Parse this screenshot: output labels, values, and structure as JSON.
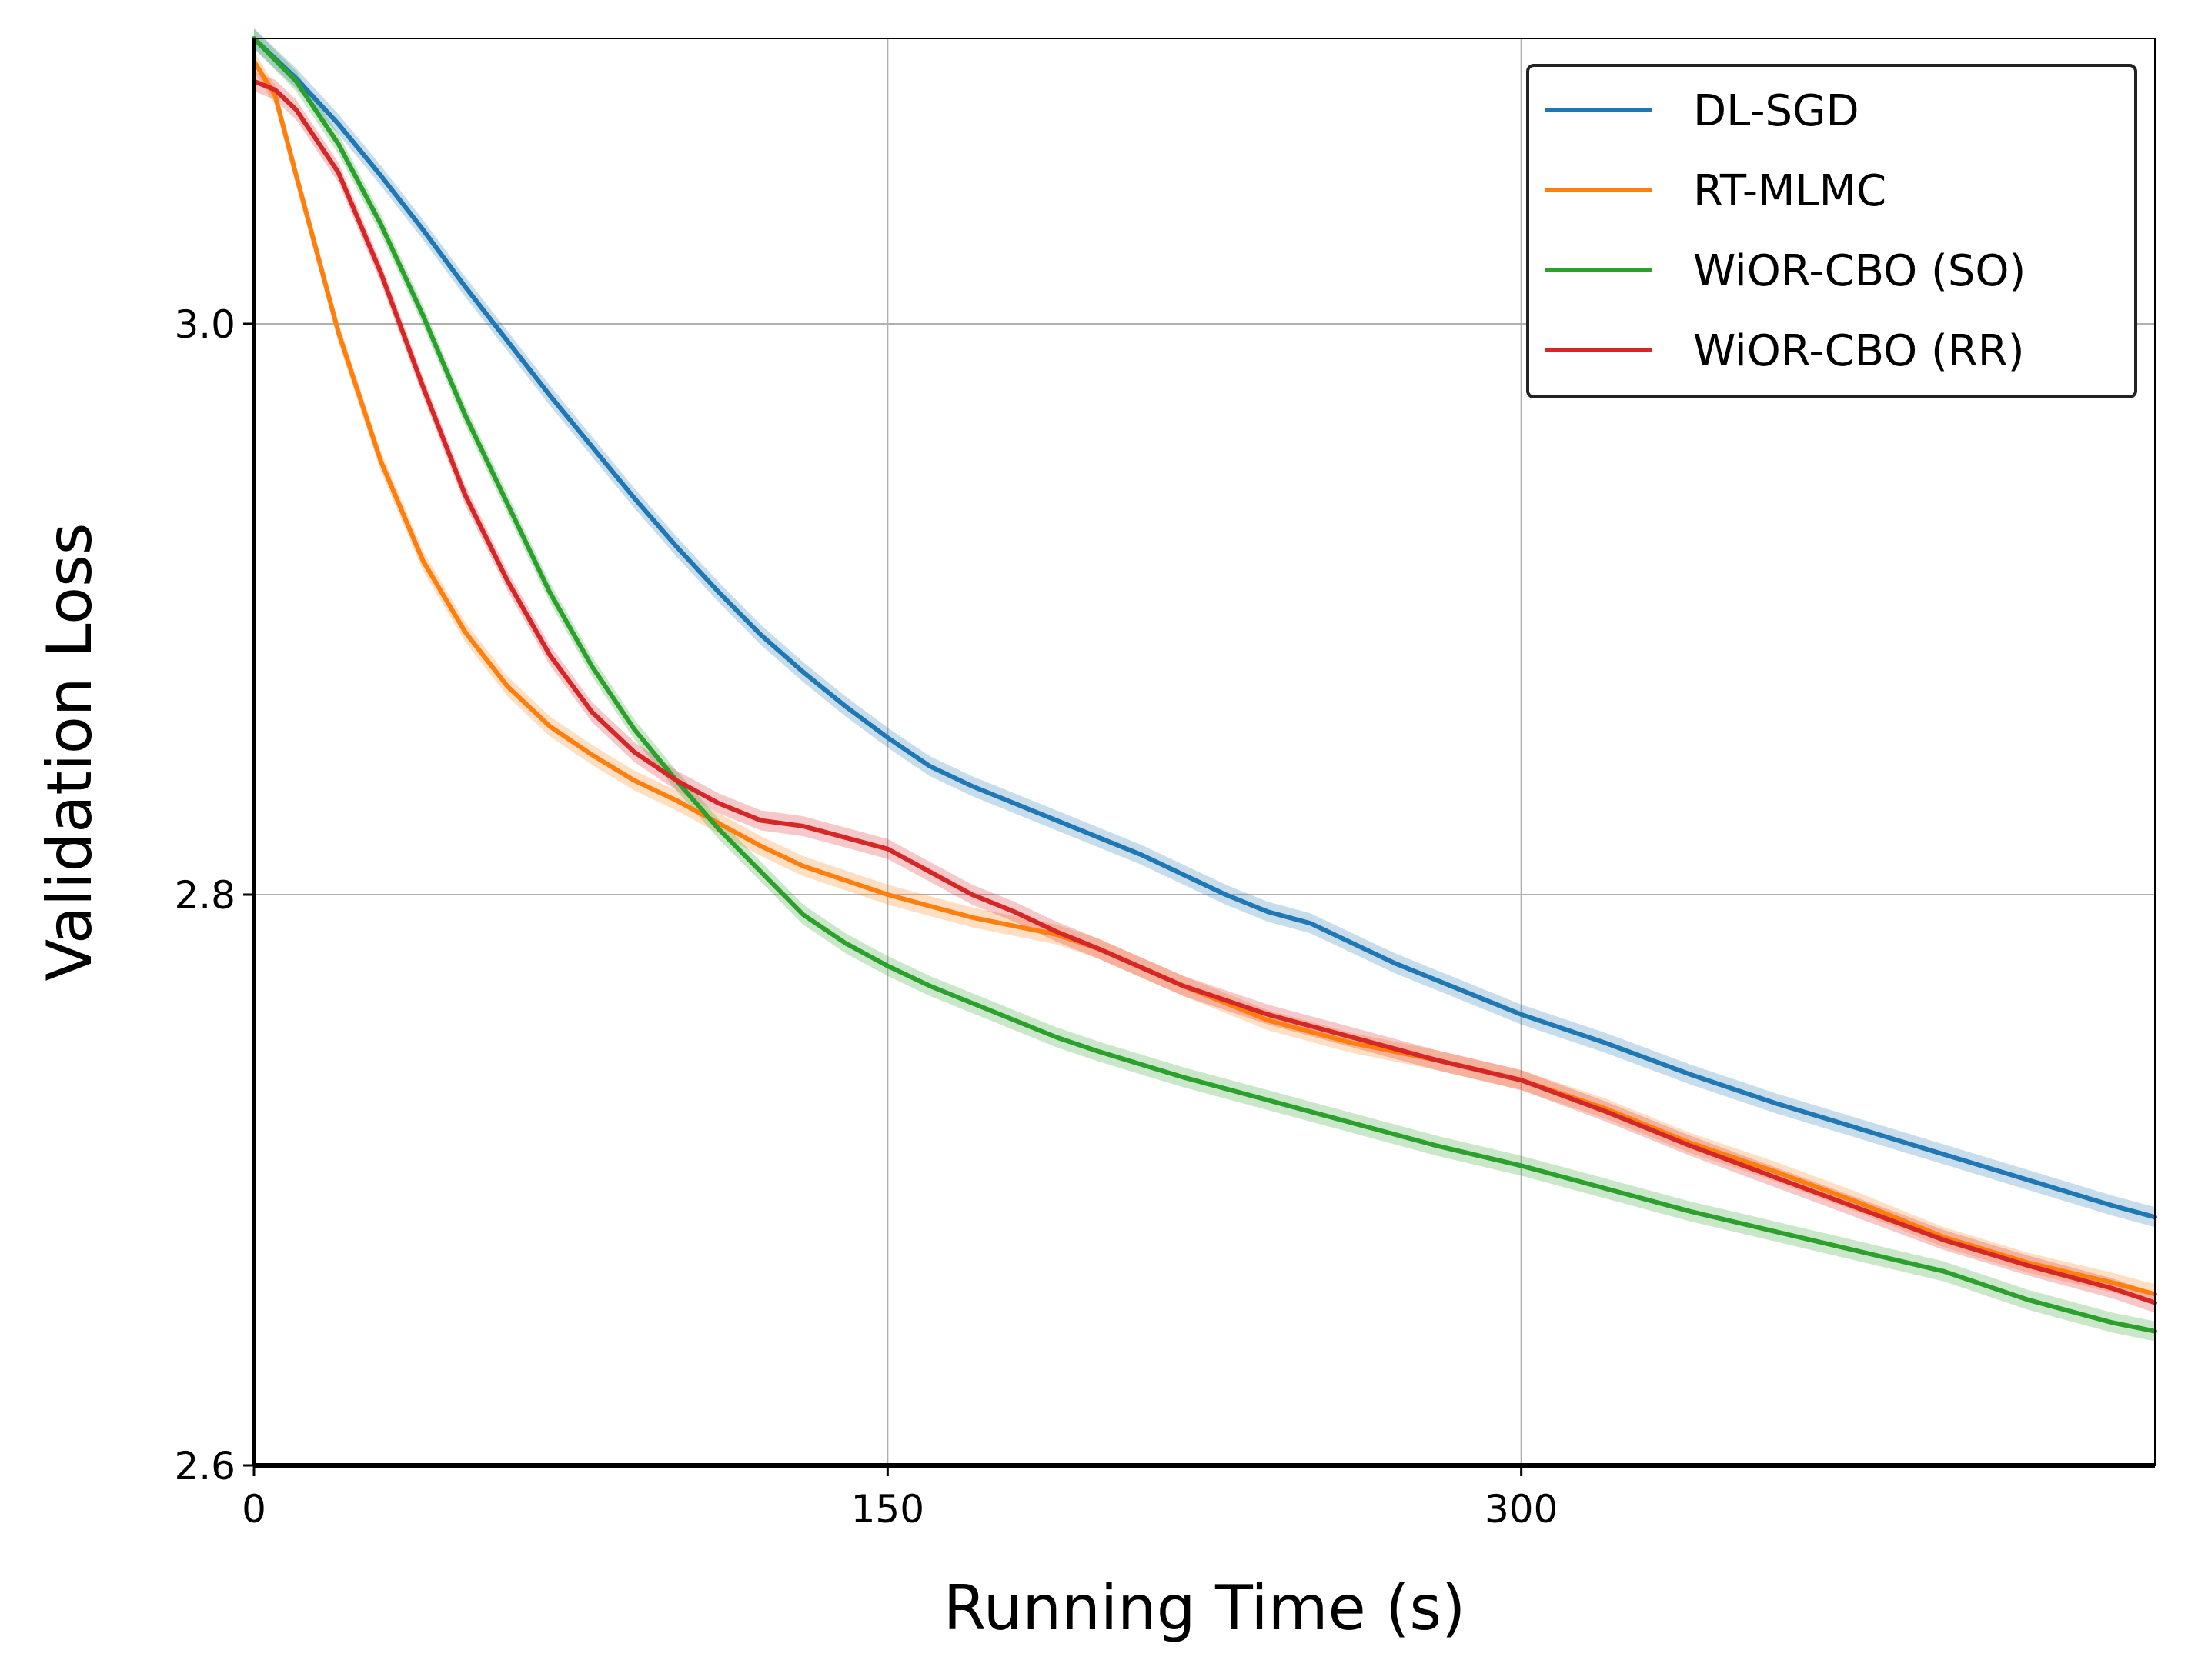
{
  "chart_data": {
    "type": "line",
    "title": "",
    "xlabel": "Running Time (s)",
    "ylabel": "Validation Loss",
    "xlim": [
      0,
      450
    ],
    "ylim": [
      2.6,
      3.1
    ],
    "xticks": [
      0,
      150,
      300
    ],
    "xtick_labels": [
      "0",
      "150",
      "300"
    ],
    "yticks": [
      2.6,
      2.8,
      3.0
    ],
    "ytick_labels": [
      "2.6",
      "2.8",
      "3.0"
    ],
    "grid": true,
    "legend_position": "top-right",
    "series": [
      {
        "name": "DL-SGD",
        "color": "#1f77b4",
        "x": [
          0,
          10,
          20,
          30,
          40,
          50,
          60,
          70,
          80,
          90,
          100,
          110,
          120,
          130,
          140,
          150,
          160,
          170,
          180,
          190,
          200,
          210,
          220,
          230,
          240,
          250,
          260,
          270,
          280,
          290,
          300,
          320,
          340,
          360,
          380,
          400,
          420,
          440,
          450
        ],
        "values": [
          3.1,
          3.086,
          3.07,
          3.052,
          3.033,
          3.013,
          2.994,
          2.975,
          2.957,
          2.939,
          2.922,
          2.906,
          2.891,
          2.878,
          2.866,
          2.855,
          2.845,
          2.838,
          2.832,
          2.826,
          2.82,
          2.814,
          2.807,
          2.8,
          2.794,
          2.79,
          2.783,
          2.776,
          2.77,
          2.764,
          2.758,
          2.748,
          2.737,
          2.727,
          2.718,
          2.709,
          2.7,
          2.691,
          2.687
        ]
      },
      {
        "name": "RT-MLMC",
        "color": "#ff7f0e",
        "x": [
          0,
          5,
          10,
          20,
          30,
          40,
          50,
          60,
          70,
          80,
          90,
          100,
          110,
          120,
          130,
          140,
          150,
          160,
          170,
          180,
          190,
          200,
          220,
          240,
          260,
          280,
          300,
          320,
          340,
          360,
          380,
          400,
          420,
          440,
          450
        ],
        "values": [
          3.092,
          3.08,
          3.052,
          2.997,
          2.952,
          2.917,
          2.892,
          2.873,
          2.859,
          2.849,
          2.84,
          2.833,
          2.825,
          2.817,
          2.81,
          2.805,
          2.8,
          2.796,
          2.792,
          2.789,
          2.786,
          2.781,
          2.768,
          2.756,
          2.748,
          2.742,
          2.735,
          2.725,
          2.713,
          2.703,
          2.692,
          2.68,
          2.671,
          2.664,
          2.66
        ]
      },
      {
        "name": "WiOR-CBO (SO)",
        "color": "#2ca02c",
        "x": [
          0,
          10,
          20,
          30,
          40,
          50,
          60,
          70,
          80,
          90,
          100,
          110,
          120,
          130,
          140,
          150,
          160,
          170,
          180,
          190,
          200,
          220,
          240,
          260,
          280,
          300,
          320,
          340,
          360,
          380,
          400,
          420,
          440,
          450
        ],
        "values": [
          3.1,
          3.085,
          3.063,
          3.035,
          3.003,
          2.968,
          2.937,
          2.906,
          2.88,
          2.858,
          2.84,
          2.823,
          2.808,
          2.793,
          2.783,
          2.775,
          2.768,
          2.762,
          2.756,
          2.75,
          2.745,
          2.736,
          2.728,
          2.72,
          2.712,
          2.705,
          2.697,
          2.689,
          2.682,
          2.675,
          2.668,
          2.658,
          2.65,
          2.647
        ]
      },
      {
        "name": "WiOR-CBO (RR)",
        "color": "#d62728",
        "x": [
          0,
          5,
          10,
          20,
          30,
          40,
          50,
          60,
          70,
          80,
          90,
          100,
          110,
          120,
          130,
          140,
          150,
          160,
          170,
          180,
          190,
          200,
          220,
          240,
          260,
          280,
          300,
          320,
          340,
          360,
          380,
          400,
          420,
          440,
          450
        ],
        "values": [
          3.085,
          3.082,
          3.075,
          3.053,
          3.018,
          2.978,
          2.94,
          2.91,
          2.884,
          2.864,
          2.85,
          2.84,
          2.832,
          2.826,
          2.824,
          2.82,
          2.816,
          2.808,
          2.8,
          2.794,
          2.787,
          2.781,
          2.768,
          2.758,
          2.75,
          2.742,
          2.735,
          2.724,
          2.712,
          2.701,
          2.69,
          2.679,
          2.67,
          2.662,
          2.657
        ]
      }
    ]
  }
}
